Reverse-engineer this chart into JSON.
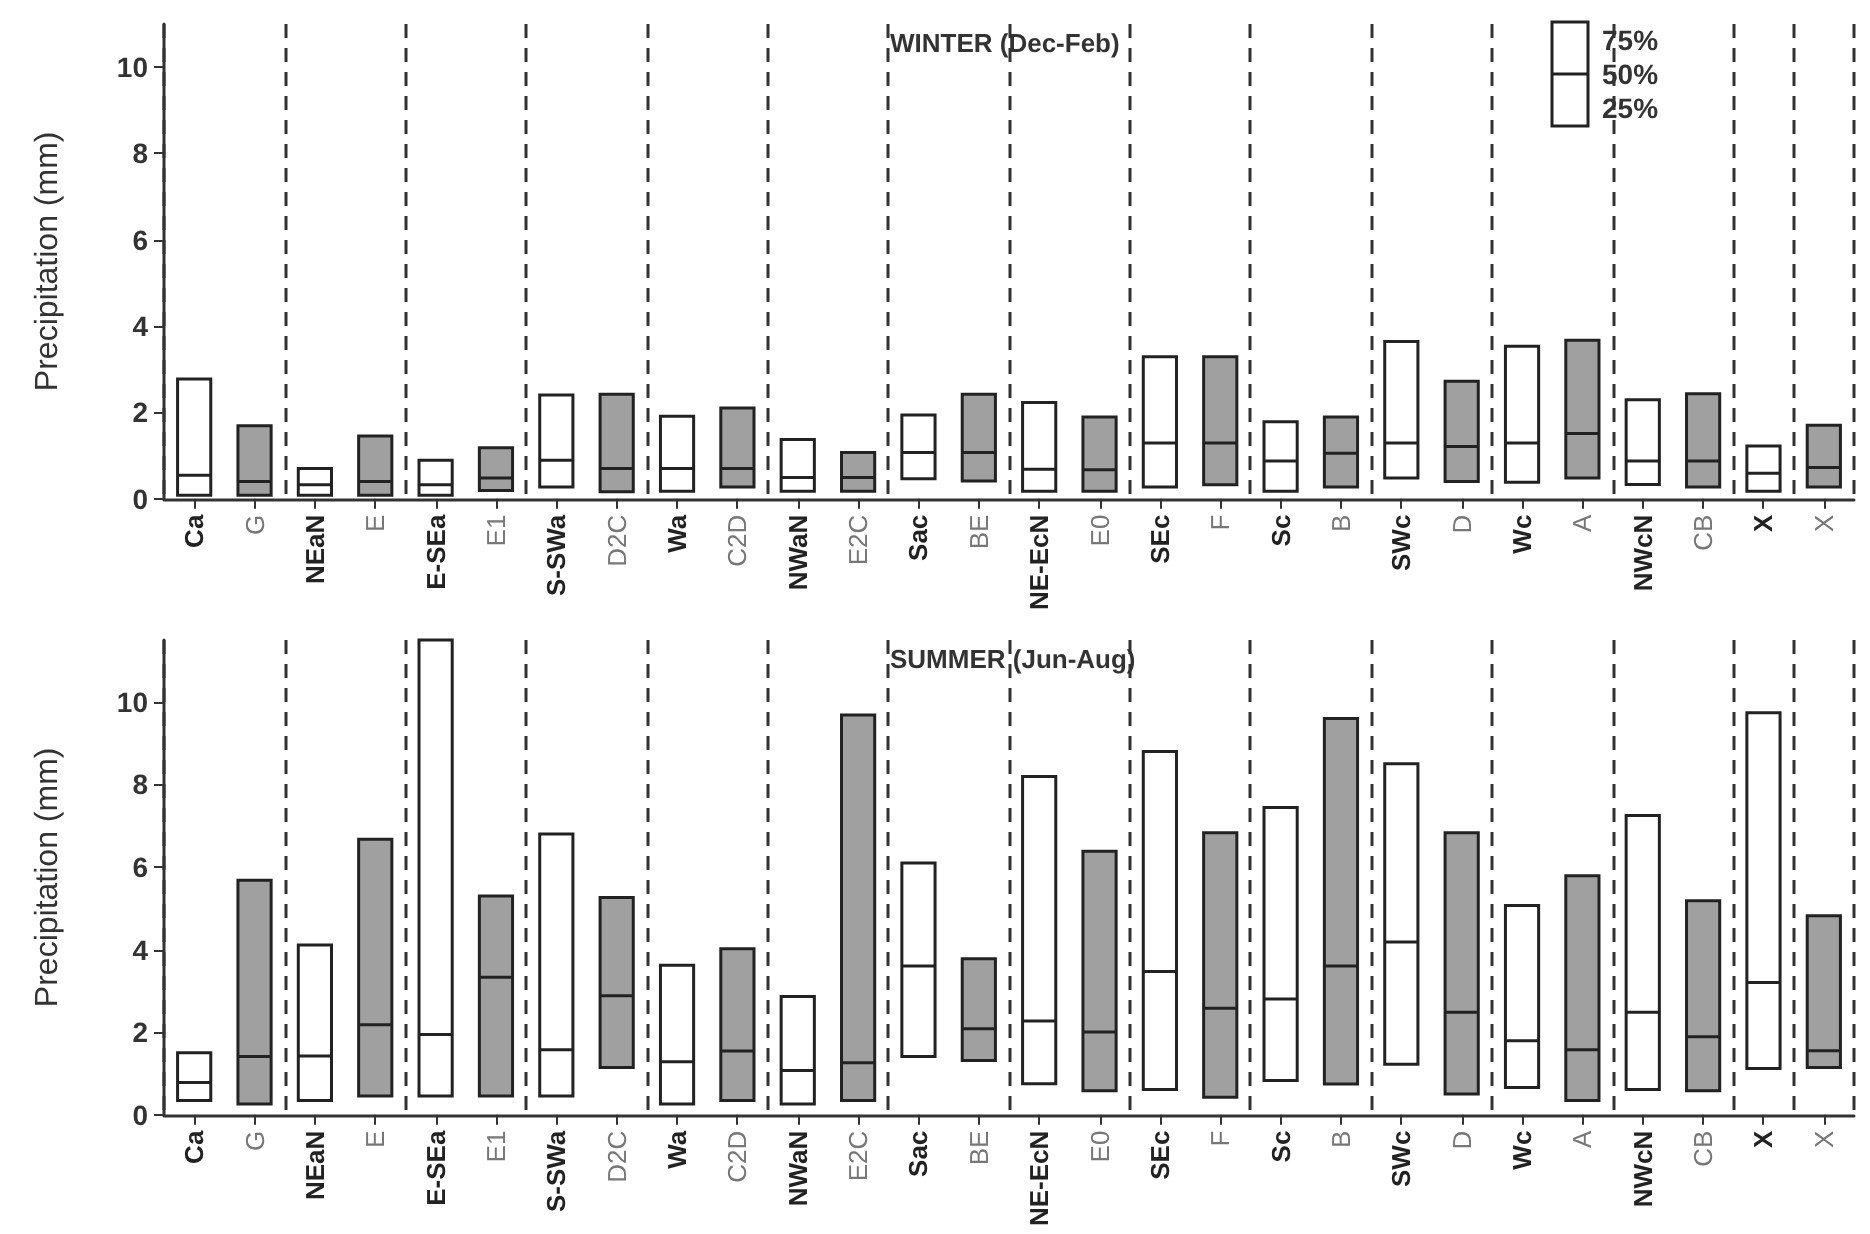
{
  "chart_data": [
    {
      "type": "box",
      "title": "WINTER (Dec-Feb)",
      "ylabel": "Precipitation (mm)",
      "categories": [
        "Ca",
        "G",
        "NEaN",
        "E",
        "E-SEa",
        "E1",
        "S-SWa",
        "D2C",
        "Wa",
        "C2D",
        "NWaN",
        "E2C",
        "Sac",
        "BE",
        "NE-EcN",
        "E0",
        "SEc",
        "F",
        "Sc",
        "B",
        "SWc",
        "D",
        "Wc",
        "A",
        "NWcN",
        "CB",
        "X",
        "X"
      ],
      "colors": [
        "#ffffff",
        "#a0a0a0",
        "#ffffff",
        "#a0a0a0",
        "#ffffff",
        "#a0a0a0",
        "#ffffff",
        "#a0a0a0",
        "#ffffff",
        "#a0a0a0",
        "#ffffff",
        "#a0a0a0",
        "#ffffff",
        "#a0a0a0",
        "#ffffff",
        "#a0a0a0",
        "#ffffff",
        "#a0a0a0",
        "#ffffff",
        "#a0a0a0",
        "#ffffff",
        "#a0a0a0",
        "#ffffff",
        "#a0a0a0",
        "#ffffff",
        "#a0a0a0",
        "#ffffff",
        "#a0a0a0"
      ],
      "boxes": [
        {
          "low": 0.08,
          "q1": 0.08,
          "median": 0.54,
          "q3": 2.77,
          "high": 2.77
        },
        {
          "low": 0.08,
          "q1": 0.08,
          "median": 0.4,
          "q3": 1.69,
          "high": 1.69
        },
        {
          "low": 0.08,
          "q1": 0.08,
          "median": 0.32,
          "q3": 0.7,
          "high": 0.7
        },
        {
          "low": 0.08,
          "q1": 0.08,
          "median": 0.4,
          "q3": 1.45,
          "high": 1.45
        },
        {
          "low": 0.08,
          "q1": 0.08,
          "median": 0.32,
          "q3": 0.89,
          "high": 0.89
        },
        {
          "low": 0.19,
          "q1": 0.19,
          "median": 0.48,
          "q3": 1.18,
          "high": 1.18
        },
        {
          "low": 0.27,
          "q1": 0.27,
          "median": 0.89,
          "q3": 2.4,
          "high": 2.4
        },
        {
          "low": 0.16,
          "q1": 0.16,
          "median": 0.7,
          "q3": 2.42,
          "high": 2.42
        },
        {
          "low": 0.17,
          "q1": 0.17,
          "median": 0.7,
          "q3": 1.91,
          "high": 1.91
        },
        {
          "low": 0.27,
          "q1": 0.27,
          "median": 0.7,
          "q3": 2.1,
          "high": 2.1
        },
        {
          "low": 0.17,
          "q1": 0.17,
          "median": 0.49,
          "q3": 1.37,
          "high": 1.37
        },
        {
          "low": 0.17,
          "q1": 0.17,
          "median": 0.49,
          "q3": 1.07,
          "high": 1.07
        },
        {
          "low": 0.46,
          "q1": 0.46,
          "median": 1.07,
          "q3": 1.94,
          "high": 1.94
        },
        {
          "low": 0.41,
          "q1": 0.41,
          "median": 1.07,
          "q3": 2.42,
          "high": 2.42
        },
        {
          "low": 0.17,
          "q1": 0.17,
          "median": 0.68,
          "q3": 2.23,
          "high": 2.23
        },
        {
          "low": 0.17,
          "q1": 0.17,
          "median": 0.67,
          "q3": 1.89,
          "high": 1.89
        },
        {
          "low": 0.27,
          "q1": 0.27,
          "median": 1.29,
          "q3": 3.29,
          "high": 3.29
        },
        {
          "low": 0.32,
          "q1": 0.32,
          "median": 1.29,
          "q3": 3.29,
          "high": 3.29
        },
        {
          "low": 0.17,
          "q1": 0.17,
          "median": 0.87,
          "q3": 1.78,
          "high": 1.78
        },
        {
          "low": 0.27,
          "q1": 0.27,
          "median": 1.05,
          "q3": 1.89,
          "high": 1.89
        },
        {
          "low": 0.48,
          "q1": 0.48,
          "median": 1.29,
          "q3": 3.64,
          "high": 3.64
        },
        {
          "low": 0.4,
          "q1": 0.4,
          "median": 1.21,
          "q3": 2.72,
          "high": 2.72
        },
        {
          "low": 0.38,
          "q1": 0.38,
          "median": 1.29,
          "q3": 3.53,
          "high": 3.53
        },
        {
          "low": 0.48,
          "q1": 0.48,
          "median": 1.51,
          "q3": 3.67,
          "high": 3.67
        },
        {
          "low": 0.33,
          "q1": 0.33,
          "median": 0.87,
          "q3": 2.29,
          "high": 2.29
        },
        {
          "low": 0.27,
          "q1": 0.27,
          "median": 0.87,
          "q3": 2.43,
          "high": 2.43
        },
        {
          "low": 0.17,
          "q1": 0.17,
          "median": 0.59,
          "q3": 1.22,
          "high": 1.22
        },
        {
          "low": 0.27,
          "q1": 0.27,
          "median": 0.72,
          "q3": 1.7,
          "high": 1.7
        }
      ],
      "ylim": [
        0,
        11
      ],
      "yticks": [
        0,
        2,
        4,
        6,
        8,
        10
      ],
      "grid": "x",
      "annotations": [
        "75%",
        "50%",
        "25%"
      ]
    },
    {
      "type": "box",
      "title": "SUMMER (Jun-Aug)",
      "ylabel": "Precipitation (mm)",
      "categories": [
        "Ca",
        "G",
        "NEaN",
        "E",
        "E-SEa",
        "E1",
        "S-SWa",
        "D2C",
        "Wa",
        "C2D",
        "NWaN",
        "E2C",
        "Sac",
        "BE",
        "NE-EcN",
        "E0",
        "SEc",
        "F",
        "Sc",
        "B",
        "SWc",
        "D",
        "Wc",
        "A",
        "NWcN",
        "CB",
        "X",
        "X"
      ],
      "colors": [
        "#ffffff",
        "#a0a0a0",
        "#ffffff",
        "#a0a0a0",
        "#ffffff",
        "#a0a0a0",
        "#ffffff",
        "#a0a0a0",
        "#ffffff",
        "#a0a0a0",
        "#ffffff",
        "#a0a0a0",
        "#ffffff",
        "#a0a0a0",
        "#ffffff",
        "#a0a0a0",
        "#ffffff",
        "#a0a0a0",
        "#ffffff",
        "#a0a0a0",
        "#ffffff",
        "#a0a0a0",
        "#ffffff",
        "#a0a0a0",
        "#ffffff",
        "#a0a0a0",
        "#ffffff",
        "#a0a0a0"
      ],
      "boxes": [
        {
          "low": 0.34,
          "q1": 0.34,
          "median": 0.78,
          "q3": 1.5,
          "high": 1.5
        },
        {
          "low": 0.26,
          "q1": 0.26,
          "median": 1.41,
          "q3": 5.68,
          "high": 5.68
        },
        {
          "low": 0.34,
          "q1": 0.34,
          "median": 1.42,
          "q3": 4.11,
          "high": 4.11
        },
        {
          "low": 0.45,
          "q1": 0.45,
          "median": 2.18,
          "q3": 6.67,
          "high": 6.67
        },
        {
          "low": 0.45,
          "q1": 0.45,
          "median": 1.94,
          "q3": 11.5,
          "high": 11.5
        },
        {
          "low": 0.45,
          "q1": 0.45,
          "median": 3.33,
          "q3": 5.3,
          "high": 5.3
        },
        {
          "low": 0.45,
          "q1": 0.45,
          "median": 1.57,
          "q3": 6.8,
          "high": 6.8
        },
        {
          "low": 1.14,
          "q1": 1.14,
          "median": 2.88,
          "q3": 5.26,
          "high": 5.26
        },
        {
          "low": 0.26,
          "q1": 0.26,
          "median": 1.28,
          "q3": 3.62,
          "high": 3.62
        },
        {
          "low": 0.34,
          "q1": 0.34,
          "median": 1.54,
          "q3": 4.02,
          "high": 4.02
        },
        {
          "low": 0.26,
          "q1": 0.26,
          "median": 1.07,
          "q3": 2.86,
          "high": 2.86
        },
        {
          "low": 0.34,
          "q1": 0.34,
          "median": 1.26,
          "q3": 9.68,
          "high": 9.68
        },
        {
          "low": 1.41,
          "q1": 1.41,
          "median": 3.6,
          "q3": 6.1,
          "high": 6.1
        },
        {
          "low": 1.31,
          "q1": 1.31,
          "median": 2.08,
          "q3": 3.78,
          "high": 3.78
        },
        {
          "low": 0.75,
          "q1": 0.75,
          "median": 2.27,
          "q3": 8.19,
          "high": 8.19
        },
        {
          "low": 0.58,
          "q1": 0.58,
          "median": 2.0,
          "q3": 6.38,
          "high": 6.38
        },
        {
          "low": 0.61,
          "q1": 0.61,
          "median": 3.47,
          "q3": 8.8,
          "high": 8.8
        },
        {
          "low": 0.42,
          "q1": 0.42,
          "median": 2.58,
          "q3": 6.83,
          "high": 6.83
        },
        {
          "low": 0.83,
          "q1": 0.83,
          "median": 2.8,
          "q3": 7.44,
          "high": 7.44
        },
        {
          "low": 0.74,
          "q1": 0.74,
          "median": 3.6,
          "q3": 9.6,
          "high": 9.6
        },
        {
          "low": 1.22,
          "q1": 1.22,
          "median": 4.18,
          "q3": 8.5,
          "high": 8.5
        },
        {
          "low": 0.5,
          "q1": 0.5,
          "median": 2.48,
          "q3": 6.83,
          "high": 6.83
        },
        {
          "low": 0.66,
          "q1": 0.66,
          "median": 1.79,
          "q3": 5.07,
          "high": 5.07
        },
        {
          "low": 0.34,
          "q1": 0.34,
          "median": 1.57,
          "q3": 5.79,
          "high": 5.79
        },
        {
          "low": 0.61,
          "q1": 0.61,
          "median": 2.48,
          "q3": 7.25,
          "high": 7.25
        },
        {
          "low": 0.58,
          "q1": 0.58,
          "median": 1.89,
          "q3": 5.18,
          "high": 5.18
        },
        {
          "low": 1.12,
          "q1": 1.12,
          "median": 3.2,
          "q3": 9.74,
          "high": 9.74
        },
        {
          "low": 1.14,
          "q1": 1.14,
          "median": 1.55,
          "q3": 4.82,
          "high": 4.82
        }
      ],
      "ylim": [
        0,
        11.5
      ],
      "yticks": [
        0,
        2,
        4,
        6,
        8,
        10
      ],
      "grid": "x"
    }
  ]
}
